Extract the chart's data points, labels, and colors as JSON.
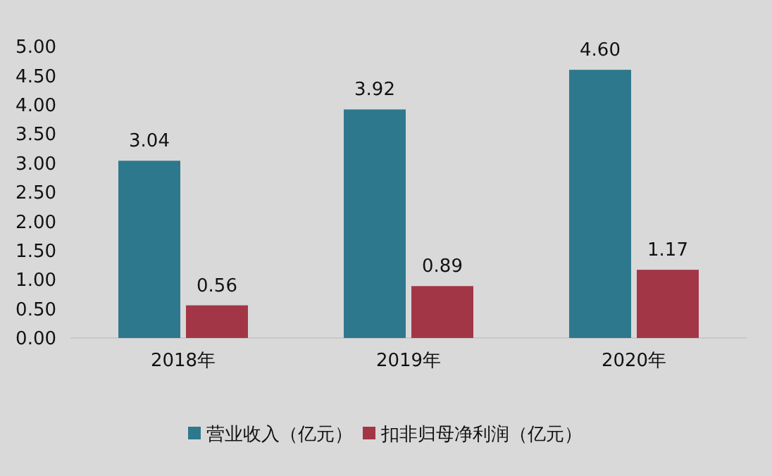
{
  "chart_data": {
    "type": "bar",
    "categories": [
      "2018年",
      "2019年",
      "2020年"
    ],
    "series": [
      {
        "name": "营业收入（亿元）",
        "color": "#2e788e",
        "values": [
          3.04,
          3.92,
          4.6
        ],
        "value_labels": [
          "3.04",
          "3.92",
          "4.60"
        ]
      },
      {
        "name": "扣非归母净利润（亿元）",
        "color": "#a33646",
        "values": [
          0.56,
          0.89,
          1.17
        ],
        "value_labels": [
          "0.56",
          "0.89",
          "1.17"
        ]
      }
    ],
    "ylim": [
      0,
      5
    ],
    "yticks": [
      {
        "value": 0,
        "label": "0.00"
      },
      {
        "value": 0.5,
        "label": "0.50"
      },
      {
        "value": 1,
        "label": "1.00"
      },
      {
        "value": 1.5,
        "label": "1.50"
      },
      {
        "value": 2,
        "label": "2.00"
      },
      {
        "value": 2.5,
        "label": "2.50"
      },
      {
        "value": 3,
        "label": "3.00"
      },
      {
        "value": 3.5,
        "label": "3.50"
      },
      {
        "value": 4,
        "label": "4.00"
      },
      {
        "value": 4.5,
        "label": "4.50"
      },
      {
        "value": 5,
        "label": "5.00"
      }
    ],
    "grid": false,
    "legend": "bottom"
  }
}
